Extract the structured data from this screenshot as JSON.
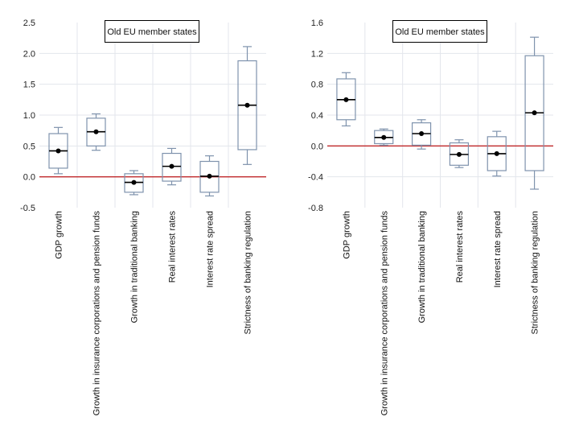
{
  "chart_data": [
    {
      "type": "box",
      "title": "",
      "legend": "Old EU member states",
      "legend_position": "top-center",
      "xlabel": "",
      "ylabel": "",
      "ylim": [
        -0.5,
        2.5
      ],
      "yticks": [
        2.5,
        2.0,
        1.5,
        1.0,
        0.5,
        0.0,
        -0.5
      ],
      "ytick_labels": [
        "2.5",
        "2.0",
        "1.5",
        "1.0",
        "0.5",
        "0.0",
        "-0.5"
      ],
      "reference_line": 0.0,
      "grid": true,
      "categories": [
        "GDP growth",
        "Growth in insurance corporations and pension funds",
        "Growth in traditional banking",
        "Real interest rates",
        "Interest rate spread",
        "Strictness of banking regulation"
      ],
      "series": [
        {
          "name": "Old EU member states",
          "whisker_high": [
            0.8,
            1.02,
            0.1,
            0.46,
            0.34,
            2.11
          ],
          "q3": [
            0.7,
            0.95,
            0.05,
            0.38,
            0.25,
            1.88
          ],
          "median": [
            0.42,
            0.73,
            -0.09,
            0.17,
            0.01,
            1.16
          ],
          "q1": [
            0.14,
            0.5,
            -0.25,
            -0.07,
            -0.25,
            0.44
          ],
          "whisker_low": [
            0.05,
            0.43,
            -0.29,
            -0.13,
            -0.31,
            0.2
          ]
        }
      ]
    },
    {
      "type": "box",
      "title": "",
      "legend": "Old EU member states",
      "legend_position": "top-center",
      "xlabel": "",
      "ylabel": "",
      "ylim": [
        -0.8,
        1.6
      ],
      "yticks": [
        1.6,
        1.2,
        0.8,
        0.4,
        0.0,
        -0.4,
        -0.8
      ],
      "ytick_labels": [
        "1.6",
        "1.2",
        "0.8",
        "0.4",
        "0.0",
        "-0.4",
        "-0.8"
      ],
      "reference_line": 0.0,
      "grid": true,
      "categories": [
        "GDP growth",
        "Growth in insurance corporations and pension funds",
        "Growth in traditional banking",
        "Real interest rates",
        "Interest rate spread",
        "Strictness of banking regulation"
      ],
      "series": [
        {
          "name": "Old EU member states",
          "whisker_high": [
            0.95,
            0.22,
            0.34,
            0.08,
            0.19,
            1.41
          ],
          "q3": [
            0.87,
            0.2,
            0.3,
            0.04,
            0.12,
            1.17
          ],
          "median": [
            0.6,
            0.11,
            0.16,
            -0.11,
            -0.1,
            0.43
          ],
          "q1": [
            0.34,
            0.03,
            0.01,
            -0.25,
            -0.32,
            -0.32
          ],
          "whisker_low": [
            0.26,
            0.01,
            -0.04,
            -0.28,
            -0.39,
            -0.56
          ]
        }
      ]
    }
  ],
  "colors": {
    "box": "#7f93ad",
    "median": "#000000",
    "reference_line": "#c0292b",
    "grid": "#e3e6ec"
  }
}
